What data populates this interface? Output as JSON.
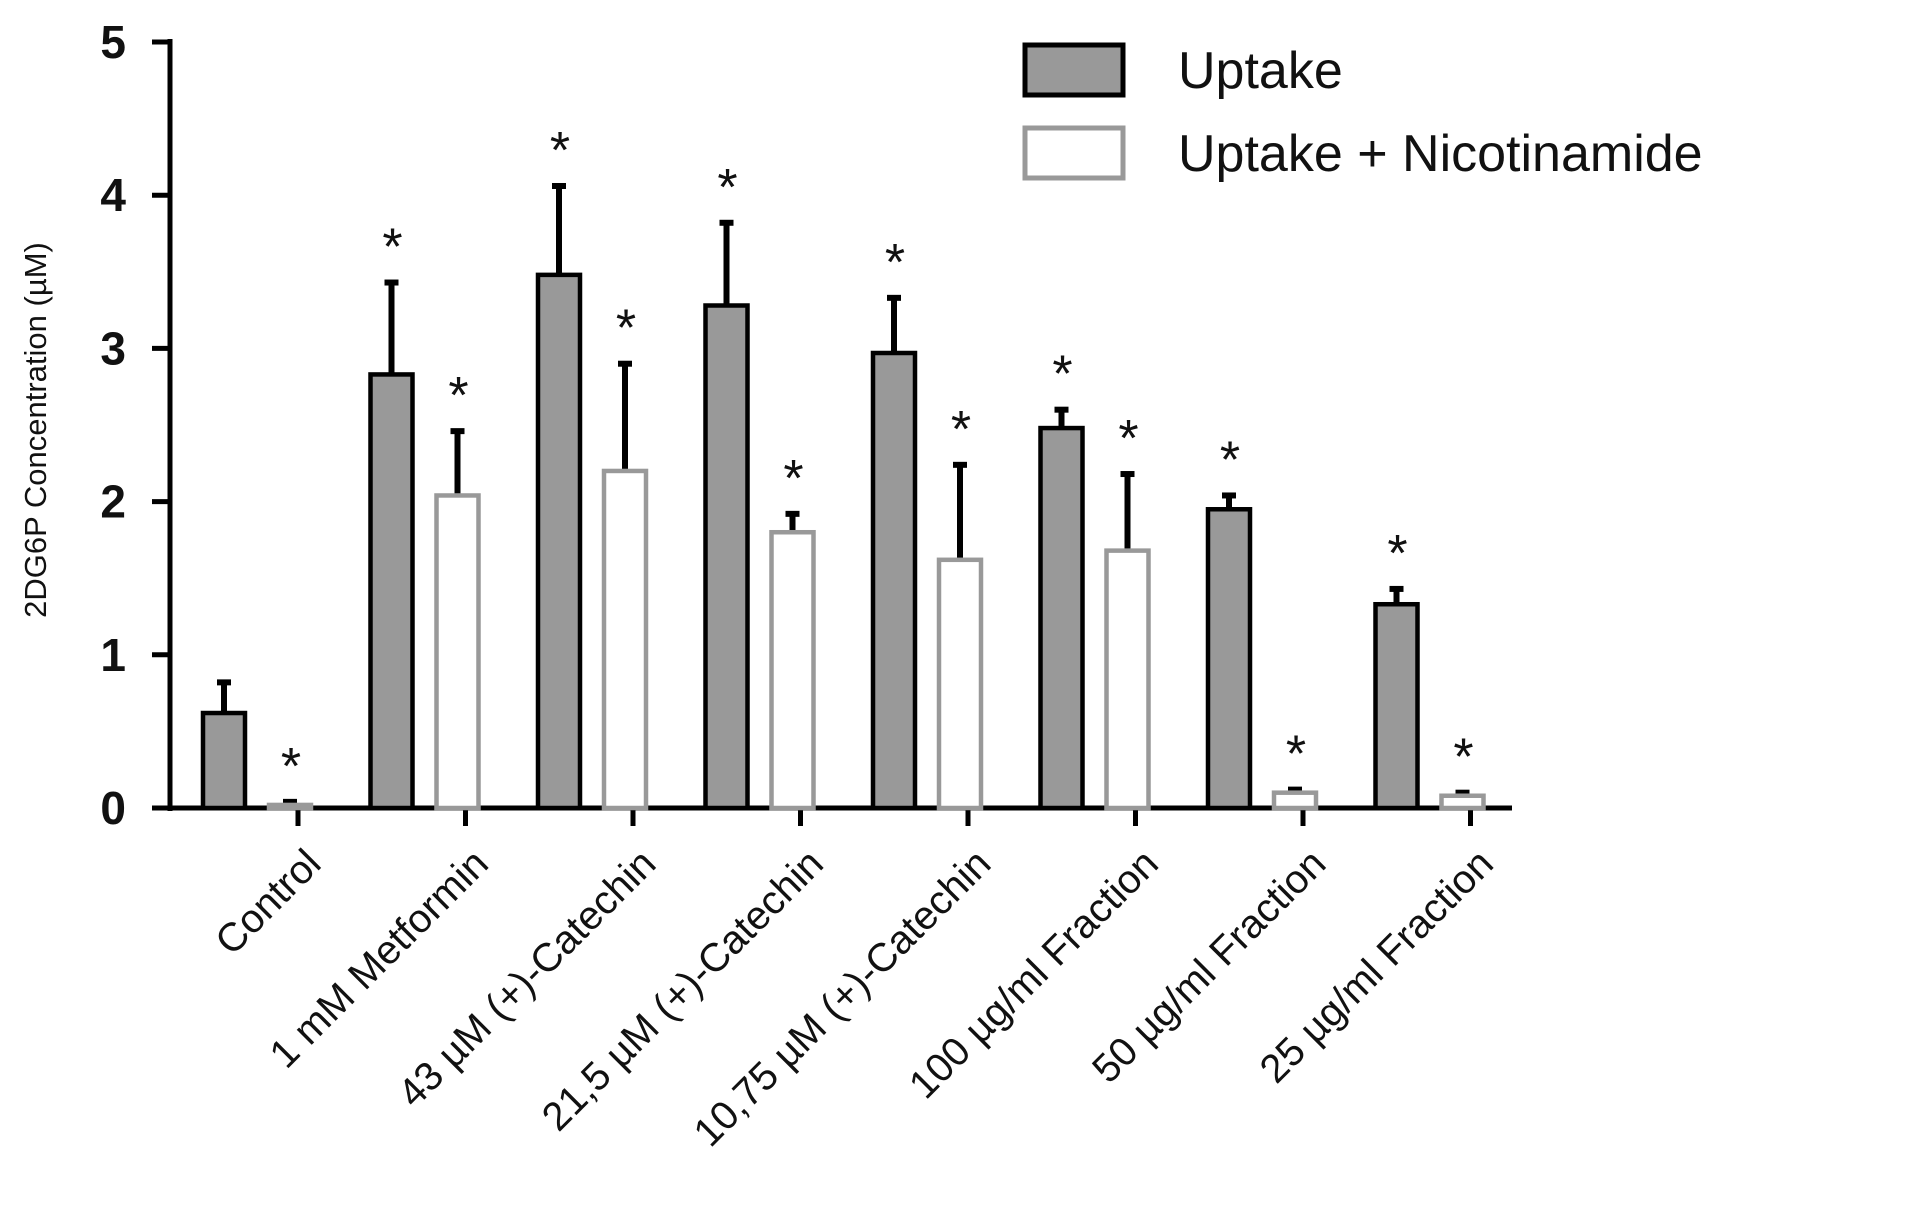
{
  "chart_data": {
    "type": "bar",
    "title": "",
    "xlabel": "",
    "ylabel": "2DG6P Concentration (µM)",
    "ylim": [
      0,
      5
    ],
    "yticks": [
      0,
      1,
      2,
      3,
      4,
      5
    ],
    "grid": false,
    "legend_position": "top-right",
    "categories": [
      "Control",
      "1 mM Metformin",
      "43 µM (+)-Catechin",
      "21,5 µM (+)-Catechin",
      "10,75 µM (+)-Catechin",
      "100 µg/ml Fraction",
      "50 µg/ml Fraction",
      "25 µg/ml Fraction"
    ],
    "series": [
      {
        "name": "Uptake",
        "fill": "#999999",
        "stroke": "#000000",
        "values": [
          0.62,
          2.83,
          3.48,
          3.28,
          2.97,
          2.48,
          1.95,
          1.33
        ],
        "errors": [
          0.2,
          0.6,
          0.58,
          0.54,
          0.36,
          0.12,
          0.09,
          0.1
        ],
        "significance": [
          "",
          "*",
          "*",
          "*",
          "*",
          "*",
          "*",
          "*"
        ]
      },
      {
        "name": "Uptake + Nicotinamide",
        "fill": "#ffffff",
        "stroke": "#999999",
        "values": [
          0.02,
          2.04,
          2.2,
          1.8,
          1.62,
          1.68,
          0.1,
          0.08
        ],
        "errors": [
          0.02,
          0.42,
          0.7,
          0.12,
          0.62,
          0.5,
          0.02,
          0.02
        ],
        "significance": [
          "*",
          "*",
          "*",
          "*",
          "*",
          "*",
          "*",
          "*"
        ]
      }
    ]
  }
}
